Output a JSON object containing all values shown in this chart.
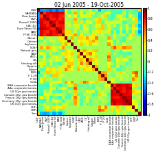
{
  "title": "02 Jun 2005 - 19-Oct-2005",
  "labels": [
    "USD",
    "NASDAQ",
    "Dow Jones",
    "S&P",
    "Russell 1000",
    "CAC 41",
    "Euro Stoxx 50",
    "DAX",
    "FTSE 100",
    "Wheat",
    "Cotton",
    "Soybean",
    "NOB",
    "Natural gas",
    "CAD",
    "AUD",
    "Oil",
    "Heating oil",
    "Copper",
    "Silver",
    "EUR",
    "F 1.25",
    "P 20",
    "Gold",
    "BAA corporate bonds",
    "AAa corporate bonds",
    "US 10yr gov bonds",
    "Canada 10yr gov bonds",
    "France 10yr gov bonds",
    "Germany 10yr gov bonds",
    "UK 10yr gov bonds",
    "CHF",
    "GBP",
    "Yen"
  ],
  "title_fontsize": 5.5,
  "label_fontsize": 2.8,
  "colorbar_fontsize": 3.5,
  "colorbar_ticks": [
    1.0,
    0.8,
    0.6,
    0.4,
    0.2,
    0.0,
    -0.2,
    -0.4,
    -0.6,
    -0.8,
    -1.0
  ],
  "vmin": -1.0,
  "vmax": 1.0,
  "figsize": [
    2.27,
    2.22
  ],
  "dpi": 100,
  "equity": [
    1,
    2,
    3,
    4,
    5,
    6,
    7,
    8
  ],
  "commodities": [
    9,
    10,
    11,
    13,
    14,
    15,
    16,
    17,
    18,
    19,
    23
  ],
  "bonds": [
    24,
    25,
    26,
    27,
    28,
    29,
    30
  ],
  "currencies_eur": [
    20,
    21,
    22,
    31,
    32
  ],
  "usd_idx": 0,
  "nob_idx": 12,
  "yen_idx": 33
}
